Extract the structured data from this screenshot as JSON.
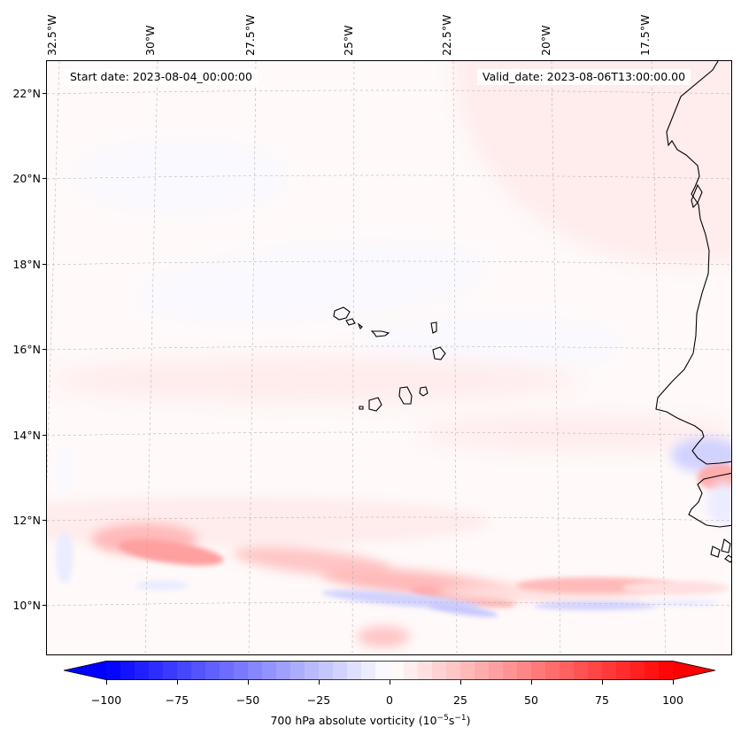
{
  "chart_data": {
    "type": "heatmap",
    "title": "",
    "projection": "map",
    "start_date_label": "Start date: 2023-08-04_00:00:00",
    "valid_date_label": "Valid_date: 2023-08-06T13:00:00.00",
    "lon_ticks": [
      "32.5°W",
      "30°W",
      "27.5°W",
      "25°W",
      "22.5°W",
      "20°W",
      "17.5°W"
    ],
    "lat_ticks": [
      "22°N",
      "20°N",
      "18°N",
      "16°N",
      "14°N",
      "12°N",
      "10°N"
    ],
    "colorbar": {
      "label_prefix": "700 hPa absolute vorticity (10",
      "label_exp1": "−5",
      "label_mid": "s",
      "label_exp2": "−1",
      "label_suffix": ")",
      "ticks": [
        "−100",
        "−75",
        "−50",
        "−25",
        "0",
        "25",
        "50",
        "75",
        "100"
      ],
      "range": [
        -100,
        100
      ],
      "step": 5,
      "extend": "both",
      "cmap": "bwr",
      "low_color": "#0000ff",
      "mid_color": "#ffffff",
      "high_color": "#ff0000"
    },
    "features": [
      "Cape Verde islands",
      "West African coastline (Mauritania, Senegal, Gambia, Guinea-Bissau)"
    ],
    "vorticity_notes": {
      "background": "weak positive (~0 to 5)",
      "positive_band_north_atlantic_NE": "~5 to 10",
      "positive_band_12N_latitude": "~15 to 35",
      "negative_band_10N_latitude": "~-10 to -25",
      "positive_max_near_coast_13N": "~30 to 40",
      "negative_near_coast_13_5N": "~-15 to -25"
    }
  }
}
